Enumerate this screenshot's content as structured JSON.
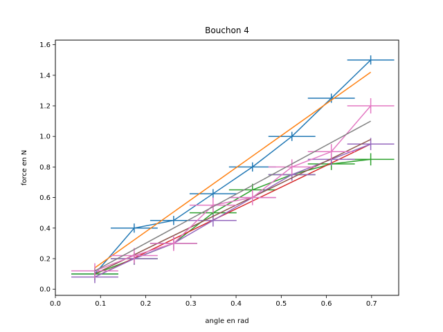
{
  "chart_data": {
    "type": "line",
    "title": "Bouchon 4",
    "xlabel": "angle en rad",
    "ylabel": "force en N",
    "xlim": [
      0.0,
      0.76
    ],
    "ylim": [
      -0.04,
      1.63
    ],
    "x_ticks": [
      "0.0",
      "0.1",
      "0.2",
      "0.3",
      "0.4",
      "0.5",
      "0.6",
      "0.7"
    ],
    "y_ticks": [
      "0.0",
      "0.2",
      "0.4",
      "0.6",
      "0.8",
      "1.0",
      "1.2",
      "1.4",
      "1.6"
    ],
    "grid": false,
    "series": [
      {
        "color": "#1f77b4",
        "kind": "errorbar",
        "x": [
          0.0873,
          0.1745,
          0.2618,
          0.3491,
          0.4363,
          0.5236,
          0.6109,
          0.6981
        ],
        "y": [
          0.1,
          0.4,
          0.45,
          0.625,
          0.8,
          1.0,
          1.25,
          1.5
        ],
        "xerr": 0.052,
        "yerr": 0.03
      },
      {
        "color": "#ff7f0e",
        "kind": "fit",
        "x": [
          0.0873,
          0.6981
        ],
        "y": [
          0.14,
          1.42
        ]
      },
      {
        "color": "#2ca02c",
        "kind": "errorbar",
        "x": [
          0.0873,
          0.1745,
          0.2618,
          0.3491,
          0.4363,
          0.5236,
          0.6109,
          0.6981
        ],
        "y": [
          0.1,
          0.2,
          0.3,
          0.5,
          0.65,
          0.75,
          0.82,
          0.85
        ],
        "xerr": 0.052,
        "yerr": 0.04
      },
      {
        "color": "#d62728",
        "kind": "fit",
        "x": [
          0.0873,
          0.6981
        ],
        "y": [
          0.08,
          0.95
        ]
      },
      {
        "color": "#9467bd",
        "kind": "errorbar",
        "x": [
          0.0873,
          0.1745,
          0.2618,
          0.3491,
          0.4363,
          0.5236,
          0.6109,
          0.6981
        ],
        "y": [
          0.08,
          0.2,
          0.3,
          0.45,
          0.6,
          0.75,
          0.85,
          0.95
        ],
        "xerr": 0.052,
        "yerr": 0.04
      },
      {
        "color": "#8c564b",
        "kind": "fit",
        "x": [
          0.0873,
          0.6981
        ],
        "y": [
          0.1,
          0.98
        ]
      },
      {
        "color": "#e377c2",
        "kind": "errorbar",
        "x": [
          0.0873,
          0.1745,
          0.2618,
          0.3491,
          0.4363,
          0.5236,
          0.6109,
          0.6981
        ],
        "y": [
          0.12,
          0.22,
          0.3,
          0.55,
          0.6,
          0.8,
          0.9,
          1.2
        ],
        "xerr": 0.052,
        "yerr": 0.05
      },
      {
        "color": "#7f7f7f",
        "kind": "fit",
        "x": [
          0.0873,
          0.6981
        ],
        "y": [
          0.12,
          1.1
        ]
      }
    ]
  }
}
